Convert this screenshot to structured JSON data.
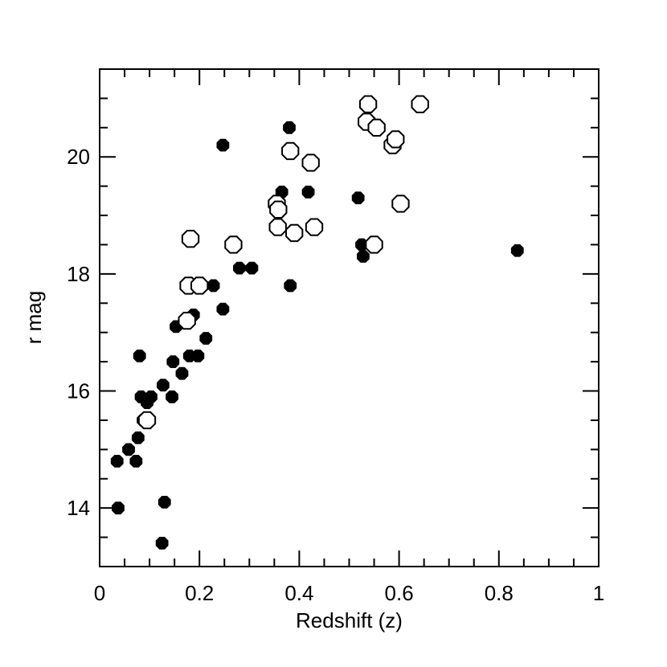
{
  "chart_data": {
    "type": "scatter",
    "title": "",
    "xlabel": "Redshift (z)",
    "ylabel": "r mag",
    "xlim": [
      0,
      1
    ],
    "ylim": [
      13,
      21.5
    ],
    "x_ticks": [
      0,
      0.2,
      0.4,
      0.6,
      0.8,
      1
    ],
    "x_tick_labels": [
      "0",
      "0.2",
      "0.4",
      "0.6",
      "0.8",
      "1"
    ],
    "y_ticks": [
      14,
      16,
      18,
      20
    ],
    "y_tick_labels": [
      "14",
      "16",
      "18",
      "20"
    ],
    "grid": false,
    "legend": "none",
    "series": [
      {
        "marker": "filled-circle",
        "color": "#000000",
        "points": [
          [
            0.035,
            14.8
          ],
          [
            0.037,
            14.0
          ],
          [
            0.058,
            15.0
          ],
          [
            0.073,
            14.8
          ],
          [
            0.077,
            15.2
          ],
          [
            0.08,
            16.6
          ],
          [
            0.083,
            15.9
          ],
          [
            0.087,
            15.5
          ],
          [
            0.095,
            15.8
          ],
          [
            0.103,
            15.9
          ],
          [
            0.125,
            13.4
          ],
          [
            0.127,
            16.1
          ],
          [
            0.13,
            14.1
          ],
          [
            0.145,
            15.9
          ],
          [
            0.147,
            16.5
          ],
          [
            0.153,
            17.1
          ],
          [
            0.165,
            16.3
          ],
          [
            0.18,
            16.6
          ],
          [
            0.188,
            17.3
          ],
          [
            0.197,
            16.6
          ],
          [
            0.213,
            16.9
          ],
          [
            0.228,
            17.8
          ],
          [
            0.247,
            17.4
          ],
          [
            0.247,
            20.2
          ],
          [
            0.28,
            18.1
          ],
          [
            0.305,
            18.1
          ],
          [
            0.365,
            19.4
          ],
          [
            0.38,
            20.5
          ],
          [
            0.382,
            17.8
          ],
          [
            0.418,
            19.4
          ],
          [
            0.518,
            19.3
          ],
          [
            0.525,
            18.5
          ],
          [
            0.528,
            18.3
          ],
          [
            0.837,
            18.4
          ]
        ]
      },
      {
        "marker": "open-circle",
        "color": "#000000",
        "points": [
          [
            0.095,
            15.5
          ],
          [
            0.175,
            17.2
          ],
          [
            0.178,
            17.8
          ],
          [
            0.182,
            18.6
          ],
          [
            0.2,
            17.8
          ],
          [
            0.268,
            18.5
          ],
          [
            0.355,
            19.2
          ],
          [
            0.357,
            18.8
          ],
          [
            0.358,
            19.1
          ],
          [
            0.382,
            20.1
          ],
          [
            0.39,
            18.7
          ],
          [
            0.423,
            19.9
          ],
          [
            0.43,
            18.8
          ],
          [
            0.535,
            20.6
          ],
          [
            0.538,
            20.9
          ],
          [
            0.55,
            18.5
          ],
          [
            0.555,
            20.5
          ],
          [
            0.587,
            20.2
          ],
          [
            0.593,
            20.3
          ],
          [
            0.603,
            19.2
          ],
          [
            0.642,
            20.9
          ]
        ]
      }
    ]
  }
}
